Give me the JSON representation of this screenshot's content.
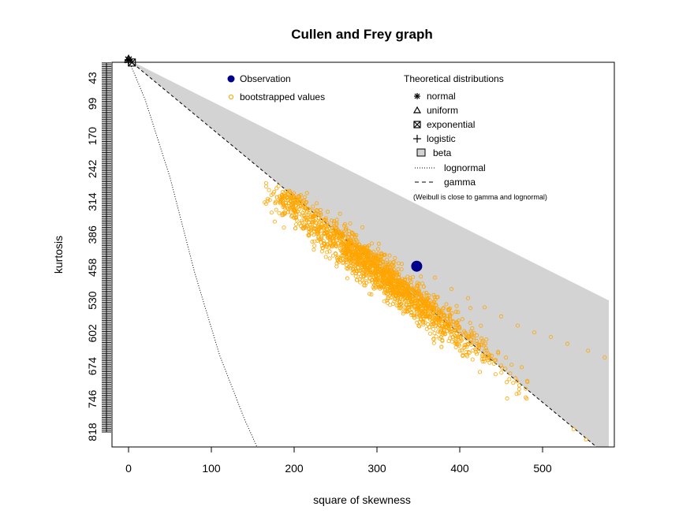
{
  "chart_data": {
    "type": "scatter",
    "title": "Cullen and Frey graph",
    "xlabel": "square of skewness",
    "ylabel": "kurtosis",
    "xlim": [
      0,
      580
    ],
    "ylim": [
      818,
      7
    ],
    "y_reversed": true,
    "x_ticks": [
      0,
      100,
      200,
      300,
      400,
      500
    ],
    "x_tick_labels": [
      "0",
      "100",
      "200",
      "300",
      "400",
      "500"
    ],
    "y_ticks": [
      43,
      99,
      170,
      242,
      314,
      386,
      458,
      530,
      602,
      674,
      746,
      818
    ],
    "y_tick_labels": [
      "43",
      "99",
      "170",
      "242",
      "314",
      "386",
      "458",
      "530",
      "602",
      "674",
      "746",
      "818"
    ],
    "grid": false,
    "observation": {
      "x": 348,
      "y": 455,
      "color": "#00008b"
    },
    "bootstrap": {
      "color": "#ffa500",
      "cloud_center_line": [
        [
          185,
          300
        ],
        [
          420,
          640
        ]
      ],
      "spread": [
        20,
        30
      ],
      "sample_points": [
        [
          185,
          300
        ],
        [
          205,
          325
        ],
        [
          225,
          345
        ],
        [
          250,
          370
        ],
        [
          270,
          390
        ],
        [
          290,
          410
        ],
        [
          310,
          430
        ],
        [
          330,
          450
        ],
        [
          348,
          455
        ],
        [
          370,
          480
        ],
        [
          390,
          505
        ],
        [
          410,
          525
        ],
        [
          430,
          545
        ],
        [
          450,
          565
        ],
        [
          470,
          585
        ],
        [
          490,
          600
        ],
        [
          510,
          610
        ],
        [
          530,
          625
        ],
        [
          555,
          640
        ],
        [
          575,
          655
        ]
      ]
    },
    "theoretical": {
      "normal": {
        "x": 0,
        "y": 3
      },
      "uniform": {
        "x": 0,
        "y": 1.8
      },
      "exponential": {
        "x": 4,
        "y": 9
      },
      "logistic": {
        "x": 0,
        "y": 4.2
      },
      "beta_region_color": "#d3d3d3",
      "gamma_line": [
        [
          0,
          3
        ],
        [
          580,
          873
        ]
      ],
      "lognormal_curve": [
        [
          0,
          3
        ],
        [
          20,
          90
        ],
        [
          50,
          260
        ],
        [
          80,
          470
        ],
        [
          110,
          650
        ],
        [
          140,
          790
        ],
        [
          175,
          930
        ]
      ]
    },
    "legend_left": [
      {
        "label": "Observation",
        "icon": "filled-circle-icon",
        "color": "#00008b"
      },
      {
        "label": "bootstrapped values",
        "icon": "open-circle-icon",
        "color": "#ffa500"
      }
    ],
    "legend_right_title": "Theoretical distributions",
    "legend_right": [
      {
        "label": "normal",
        "icon": "asterisk-icon"
      },
      {
        "label": "uniform",
        "icon": "triangle-icon"
      },
      {
        "label": "exponential",
        "icon": "boxed-x-icon"
      },
      {
        "label": "logistic",
        "icon": "plus-icon"
      },
      {
        "label": "beta",
        "icon": "gray-square-icon"
      },
      {
        "label": "lognormal",
        "icon": "dotted-line-icon"
      },
      {
        "label": "gamma",
        "icon": "dashed-line-icon"
      }
    ],
    "legend_note": "(Weibull is close to gamma and lognormal)"
  }
}
